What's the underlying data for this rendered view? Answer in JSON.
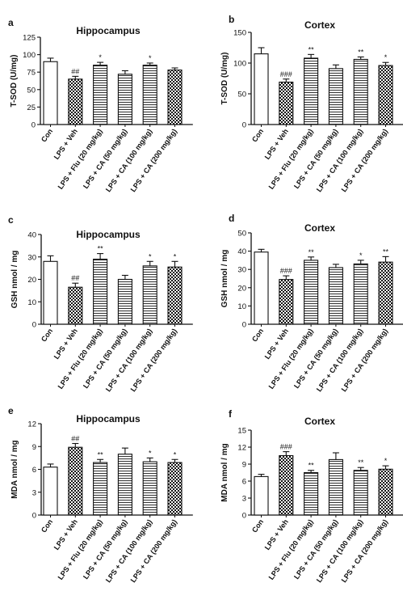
{
  "categories": [
    "Con",
    "LPS + Veh",
    "LPS + Flu (20 mg/kg)",
    "LPS + CA (50 mg/kg)",
    "LPS + CA (100 mg/kg)",
    "LPS + CA (200 mg/kg)"
  ],
  "chart_data": [
    {
      "type": "bar",
      "panel": "a",
      "title": "Hippocampus",
      "ylabel": "T-SOD (U/mg)",
      "ylim": [
        0,
        125
      ],
      "yticks": [
        0,
        25,
        50,
        75,
        100,
        125
      ],
      "categories": [
        "Con",
        "LPS + Veh",
        "LPS + Flu (20 mg/kg)",
        "LPS + CA (50 mg/kg)",
        "LPS + CA (100 mg/kg)",
        "LPS + CA (200 mg/kg)"
      ],
      "values": [
        90,
        65,
        85,
        72,
        85,
        78
      ],
      "errors": [
        5,
        4,
        4,
        5,
        3,
        3
      ],
      "annotations": [
        "",
        "##",
        "*",
        "",
        "*",
        ""
      ],
      "fill_patterns": [
        "white",
        "checker",
        "hlines",
        "hlines",
        "hlines",
        "checker"
      ]
    },
    {
      "type": "bar",
      "panel": "b",
      "title": "Cortex",
      "ylabel": "T-SOD (U/mg)",
      "ylim": [
        0,
        150
      ],
      "yticks": [
        0,
        50,
        100,
        150
      ],
      "categories": [
        "Con",
        "LPS + Veh",
        "LPS + Flu (20 mg/kg)",
        "LPS + CA (50 mg/kg)",
        "LPS + CA (100 mg/kg)",
        "LPS + CA (200 mg/kg)"
      ],
      "values": [
        115,
        69,
        108,
        91,
        106,
        96
      ],
      "errors": [
        10,
        5,
        6,
        6,
        4,
        5
      ],
      "annotations": [
        "",
        "###",
        "**",
        "",
        "**",
        "*"
      ],
      "fill_patterns": [
        "white",
        "checker",
        "hlines",
        "hlines",
        "hlines",
        "checker"
      ]
    },
    {
      "type": "bar",
      "panel": "c",
      "title": "Hippocampus",
      "ylabel": "GSH nmol / mg",
      "ylim": [
        0,
        40
      ],
      "yticks": [
        0,
        10,
        20,
        30,
        40
      ],
      "categories": [
        "Con",
        "LPS + Veh",
        "LPS + Flu (20 mg/kg)",
        "LPS + CA (50 mg/kg)",
        "LPS + CA (100 mg/kg)",
        "LPS + CA (200 mg/kg)"
      ],
      "values": [
        28,
        16.5,
        29,
        20,
        26,
        25.5
      ],
      "errors": [
        2.5,
        1.8,
        2.5,
        1.8,
        2.0,
        2.5
      ],
      "annotations": [
        "",
        "##",
        "**",
        "",
        "*",
        "*"
      ],
      "fill_patterns": [
        "white",
        "checker",
        "hlines",
        "hlines",
        "hlines",
        "checker"
      ]
    },
    {
      "type": "bar",
      "panel": "d",
      "title": "Cortex",
      "ylabel": "GSH nmol / mg",
      "ylim": [
        0,
        50
      ],
      "yticks": [
        0,
        10,
        20,
        30,
        40,
        50
      ],
      "categories": [
        "Con",
        "LPS + Veh",
        "LPS + Flu (20 mg/kg)",
        "LPS + CA (50 mg/kg)",
        "LPS + CA (100 mg/kg)",
        "LPS + CA (200 mg/kg)"
      ],
      "values": [
        39.5,
        24.5,
        35,
        31,
        33,
        34
      ],
      "errors": [
        1.5,
        2.0,
        1.8,
        1.8,
        2.0,
        3.0
      ],
      "annotations": [
        "",
        "###",
        "**",
        "",
        "*",
        "**"
      ],
      "fill_patterns": [
        "white",
        "checker",
        "hlines",
        "hlines",
        "hlines",
        "checker"
      ]
    },
    {
      "type": "bar",
      "panel": "e",
      "title": "Hippocampus",
      "ylabel": "MDA nmol / mg",
      "ylim": [
        0,
        12
      ],
      "yticks": [
        0,
        3,
        6,
        9,
        12
      ],
      "categories": [
        "Con",
        "LPS + Veh",
        "LPS + Flu (20 mg/kg)",
        "LPS + CA (50 mg/kg)",
        "LPS + CA (100 mg/kg)",
        "LPS + CA (200 mg/kg)"
      ],
      "values": [
        6.3,
        8.9,
        6.9,
        8.0,
        7.0,
        6.9
      ],
      "errors": [
        0.4,
        0.5,
        0.4,
        0.8,
        0.5,
        0.4
      ],
      "annotations": [
        "",
        "##",
        "**",
        "",
        "*",
        "*"
      ],
      "fill_patterns": [
        "white",
        "checker",
        "hlines",
        "hlines",
        "hlines",
        "checker"
      ]
    },
    {
      "type": "bar",
      "panel": "f",
      "title": "Cortex",
      "ylabel": "MDA nmol / mg",
      "ylim": [
        0,
        15
      ],
      "yticks": [
        0,
        3,
        6,
        9,
        12,
        15
      ],
      "categories": [
        "Con",
        "LPS + Veh",
        "LPS + Flu (20 mg/kg)",
        "LPS + CA (50 mg/kg)",
        "LPS + CA (100 mg/kg)",
        "LPS + CA (200 mg/kg)"
      ],
      "values": [
        6.8,
        10.5,
        7.5,
        9.8,
        7.9,
        8.1
      ],
      "errors": [
        0.4,
        0.7,
        0.4,
        1.2,
        0.5,
        0.6
      ],
      "annotations": [
        "",
        "###",
        "**",
        "",
        "**",
        "*"
      ],
      "fill_patterns": [
        "white",
        "checker",
        "hlines",
        "hlines",
        "hlines",
        "checker"
      ]
    }
  ]
}
